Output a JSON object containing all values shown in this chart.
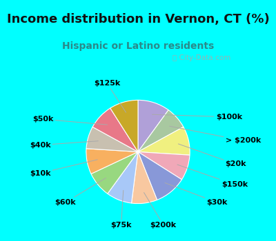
{
  "title": "Income distribution in Vernon, CT (%)",
  "subtitle": "Hispanic or Latino residents",
  "watermark": "ⓘ City-Data.com",
  "background_cyan": "#00FFFF",
  "background_chart": "#d8ede0",
  "labels": [
    "$100k",
    "> $200k",
    "$20k",
    "$150k",
    "$30k",
    "$200k",
    "$75k",
    "$60k",
    "$10k",
    "$40k",
    "$50k",
    "$125k"
  ],
  "values": [
    10,
    7,
    9,
    8,
    10,
    8,
    8,
    8,
    8,
    7,
    8,
    9
  ],
  "colors": [
    "#b0a0d8",
    "#a8c8a0",
    "#f0f080",
    "#f0a8b8",
    "#8898d8",
    "#f8c8a0",
    "#a8c8f8",
    "#98d880",
    "#f8b060",
    "#c8c0b0",
    "#e87888",
    "#c8a828"
  ],
  "label_fontsize": 8,
  "title_fontsize": 13,
  "subtitle_fontsize": 10,
  "title_color": "#111111",
  "subtitle_color": "#2a8a8a"
}
